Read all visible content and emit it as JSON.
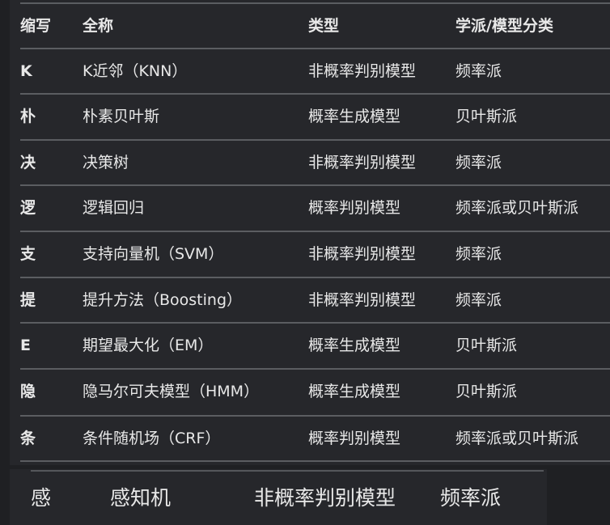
{
  "table": {
    "headers": [
      "缩写",
      "全称",
      "类型",
      "学派/模型分类"
    ],
    "rows": [
      [
        "K",
        "K近邻（KNN）",
        "非概率判别模型",
        "频率派"
      ],
      [
        "朴",
        "朴素贝叶斯",
        "概率生成模型",
        "贝叶斯派"
      ],
      [
        "决",
        "决策树",
        "非概率判别模型",
        "频率派"
      ],
      [
        "逻",
        "逻辑回归",
        "概率判别模型",
        "频率派或贝叶斯派"
      ],
      [
        "支",
        "支持向量机（SVM）",
        "非概率判别模型",
        "频率派"
      ],
      [
        "提",
        "提升方法（Boosting）",
        "非概率判别模型",
        "频率派"
      ],
      [
        "E",
        "期望最大化（EM）",
        "概率生成模型",
        "贝叶斯派"
      ],
      [
        "隐",
        "隐马尔可夫模型（HMM）",
        "概率生成模型",
        "贝叶斯派"
      ],
      [
        "条",
        "条件随机场（CRF）",
        "概率判别模型",
        "频率派或贝叶斯派"
      ]
    ]
  },
  "overlay_row": [
    "感",
    "感知机",
    "非概率判别模型",
    "频率派"
  ]
}
